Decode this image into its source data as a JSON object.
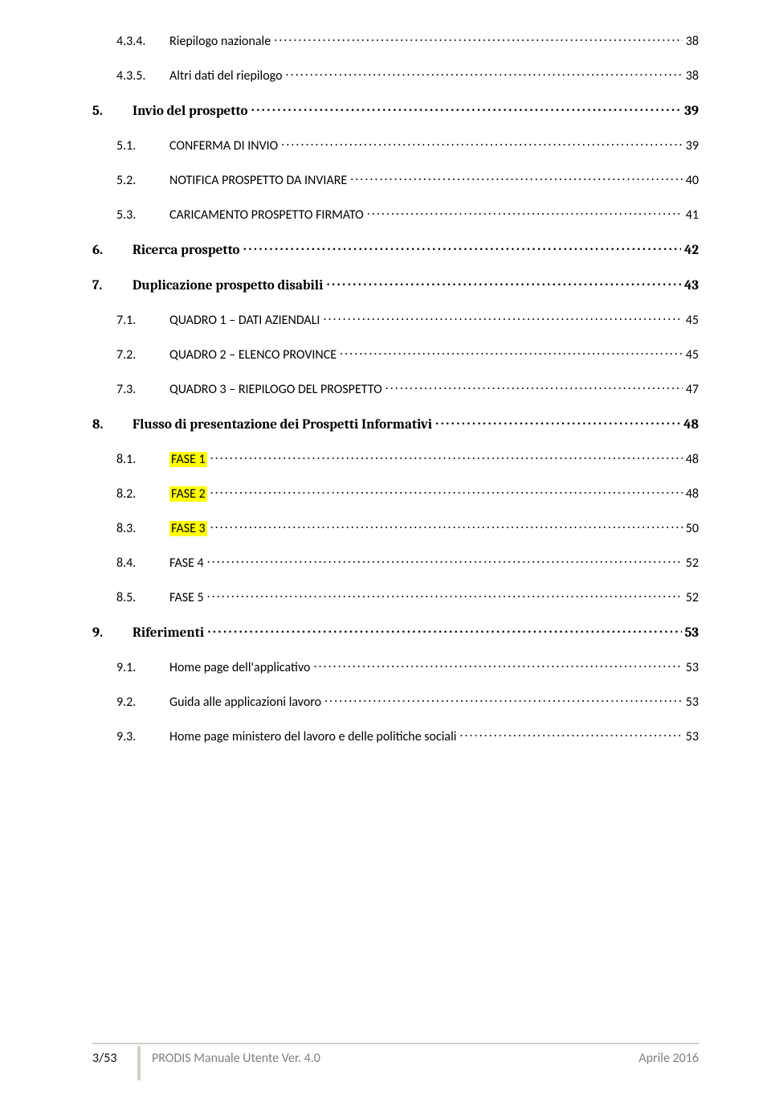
{
  "toc": [
    {
      "level": "l3",
      "num": "4.3.4.",
      "title": "Riepilogo nazionale",
      "page": "38",
      "hl": false
    },
    {
      "level": "l3",
      "num": "4.3.5.",
      "title": "Altri dati del riepilogo",
      "page": "38",
      "hl": false
    },
    {
      "level": "l2",
      "num": "5.",
      "title": "Invio del prospetto",
      "page": "39",
      "hl": false
    },
    {
      "level": "l2sub",
      "num": "5.1.",
      "title": "CONFERMA DI INVIO",
      "page": "39",
      "hl": false
    },
    {
      "level": "l2sub",
      "num": "5.2.",
      "title": "NOTIFICA PROSPETTO DA INVIARE",
      "page": "40",
      "hl": false
    },
    {
      "level": "l2sub",
      "num": "5.3.",
      "title": "CARICAMENTO PROSPETTO FIRMATO",
      "page": "41",
      "hl": false
    },
    {
      "level": "l2",
      "num": "6.",
      "title": "Ricerca prospetto",
      "page": "42",
      "hl": false
    },
    {
      "level": "l2",
      "num": "7.",
      "title": "Duplicazione prospetto disabili",
      "page": "43",
      "hl": false
    },
    {
      "level": "l2sub",
      "num": "7.1.",
      "title": "QUADRO 1 – DATI AZIENDALI",
      "page": "45",
      "hl": false
    },
    {
      "level": "l2sub",
      "num": "7.2.",
      "title": "QUADRO 2 – ELENCO PROVINCE",
      "page": "45",
      "hl": false
    },
    {
      "level": "l2sub",
      "num": "7.3.",
      "title": "QUADRO 3 – RIEPILOGO DEL PROSPETTO",
      "page": "47",
      "hl": false
    },
    {
      "level": "l2",
      "num": "8.",
      "title": "Flusso di presentazione dei Prospetti Informativi",
      "page": "48",
      "hl": false
    },
    {
      "level": "l2sub",
      "num": "8.1.",
      "title": "FASE 1",
      "page": "48",
      "hl": true
    },
    {
      "level": "l2sub",
      "num": "8.2.",
      "title": "FASE 2",
      "page": "48",
      "hl": true
    },
    {
      "level": "l2sub",
      "num": "8.3.",
      "title": "FASE 3",
      "page": "50",
      "hl": true
    },
    {
      "level": "l2sub",
      "num": "8.4.",
      "title": "FASE 4",
      "page": "52",
      "hl": false
    },
    {
      "level": "l2sub",
      "num": "8.5.",
      "title": "FASE 5",
      "page": "52",
      "hl": false
    },
    {
      "level": "l2",
      "num": "9.",
      "title": "Riferimenti",
      "page": "53",
      "hl": false
    },
    {
      "level": "l2sub",
      "num": "9.1.",
      "title": "Home page dell'applicativo",
      "page": "53",
      "hl": false
    },
    {
      "level": "l2sub",
      "num": "9.2.",
      "title": "Guida alle applicazioni lavoro",
      "page": "53",
      "hl": false
    },
    {
      "level": "l2sub",
      "num": "9.3.",
      "title": "Home page ministero del lavoro e delle politiche sociali",
      "page": "53",
      "hl": false
    }
  ],
  "footer": {
    "page": "3/53",
    "title": "PRODIS Manuale Utente  Ver. 4.0",
    "date": "Aprile  2016"
  }
}
